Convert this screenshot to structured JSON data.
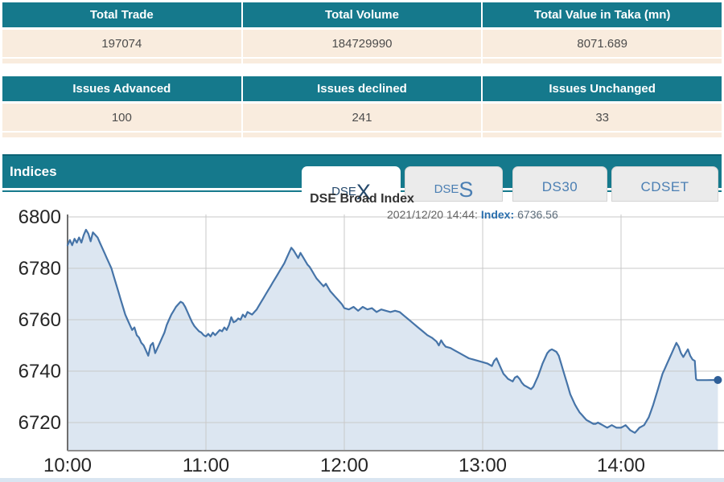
{
  "summary": {
    "trade": {
      "headers": [
        "Total Trade",
        "Total Volume",
        "Total Value in Taka (mn)"
      ],
      "values": [
        "197074",
        "184729990",
        "8071.689"
      ]
    },
    "issues": {
      "headers": [
        "Issues Advanced",
        "Issues declined",
        "Issues Unchanged"
      ],
      "values": [
        "100",
        "241",
        "33"
      ]
    }
  },
  "indices": {
    "title": "Indices",
    "tabs": [
      {
        "prefix": "DSE",
        "suffix": "X",
        "active": true
      },
      {
        "prefix": "DSE",
        "suffix": "S",
        "active": false
      },
      {
        "prefix": "DS30",
        "suffix": "",
        "active": false
      },
      {
        "prefix": "CDSET",
        "suffix": "",
        "active": false
      }
    ]
  },
  "colors": {
    "accent_teal": "#15798c",
    "row_beige": "#f9ecde",
    "tab_blue": "#4b7fb3",
    "line": "#4674a8",
    "fill": "#dce6f1",
    "grid": "#c9c9c9",
    "axis": "#6e6e6e",
    "marker": "#2f5f98"
  },
  "chart_data": {
    "type": "area",
    "title": "DSE Broad Index",
    "annotation": {
      "datetime": "2021/12/20 14:44:",
      "series_label": "Index:",
      "value": "6736.56"
    },
    "x_ticks": [
      "10:00",
      "11:00",
      "12:00",
      "13:00",
      "14:00"
    ],
    "y_ticks": [
      6800,
      6780,
      6760,
      6740,
      6720
    ],
    "ylim": [
      6710,
      6802
    ],
    "x_minutes_range": [
      0,
      284
    ],
    "grid": true,
    "legend": false,
    "series": [
      {
        "name": "Index",
        "last_value": 6736.56,
        "points": [
          [
            0,
            6789
          ],
          [
            1,
            6791
          ],
          [
            2,
            6789
          ],
          [
            3,
            6791.5
          ],
          [
            4,
            6790
          ],
          [
            5,
            6792
          ],
          [
            6,
            6790
          ],
          [
            7,
            6793
          ],
          [
            8,
            6795
          ],
          [
            9,
            6793.5
          ],
          [
            10,
            6790.5
          ],
          [
            11,
            6794
          ],
          [
            12,
            6793
          ],
          [
            13,
            6792
          ],
          [
            14,
            6790
          ],
          [
            15,
            6788
          ],
          [
            16,
            6786
          ],
          [
            17,
            6784
          ],
          [
            18,
            6782
          ],
          [
            19,
            6780
          ],
          [
            20,
            6777
          ],
          [
            21,
            6774
          ],
          [
            22,
            6771
          ],
          [
            23,
            6768
          ],
          [
            24,
            6765
          ],
          [
            25,
            6762
          ],
          [
            26,
            6760
          ],
          [
            27,
            6758
          ],
          [
            28,
            6756
          ],
          [
            29,
            6757
          ],
          [
            30,
            6754
          ],
          [
            31,
            6753
          ],
          [
            32,
            6751
          ],
          [
            33,
            6750
          ],
          [
            34,
            6748
          ],
          [
            35,
            6746
          ],
          [
            36,
            6750
          ],
          [
            37,
            6751
          ],
          [
            38,
            6747
          ],
          [
            39,
            6749
          ],
          [
            40,
            6751
          ],
          [
            41,
            6753
          ],
          [
            42,
            6755
          ],
          [
            43,
            6758
          ],
          [
            44,
            6760
          ],
          [
            45,
            6762
          ],
          [
            46,
            6763.5
          ],
          [
            47,
            6765
          ],
          [
            48,
            6766
          ],
          [
            49,
            6767
          ],
          [
            50,
            6766.5
          ],
          [
            51,
            6765
          ],
          [
            52,
            6763
          ],
          [
            53,
            6761
          ],
          [
            54,
            6759
          ],
          [
            55,
            6757.5
          ],
          [
            56,
            6756.5
          ],
          [
            57,
            6755.5
          ],
          [
            58,
            6755
          ],
          [
            59,
            6754
          ],
          [
            60,
            6753.5
          ],
          [
            61,
            6754.5
          ],
          [
            62,
            6753.5
          ],
          [
            63,
            6755
          ],
          [
            64,
            6754
          ],
          [
            65,
            6755
          ],
          [
            66,
            6756
          ],
          [
            67,
            6755.5
          ],
          [
            68,
            6757
          ],
          [
            69,
            6756
          ],
          [
            70,
            6758
          ],
          [
            71,
            6761
          ],
          [
            72,
            6759
          ],
          [
            73,
            6759.5
          ],
          [
            74,
            6760.5
          ],
          [
            75,
            6760
          ],
          [
            76,
            6762
          ],
          [
            77,
            6761
          ],
          [
            78,
            6763
          ],
          [
            79,
            6762.5
          ],
          [
            80,
            6762
          ],
          [
            81,
            6763
          ],
          [
            82,
            6764
          ],
          [
            83,
            6765.5
          ],
          [
            84,
            6767
          ],
          [
            85,
            6768.5
          ],
          [
            86,
            6770
          ],
          [
            87,
            6771.5
          ],
          [
            88,
            6773
          ],
          [
            89,
            6774.5
          ],
          [
            90,
            6776
          ],
          [
            91,
            6777.5
          ],
          [
            92,
            6779
          ],
          [
            93,
            6780.5
          ],
          [
            94,
            6782
          ],
          [
            95,
            6784
          ],
          [
            96,
            6786
          ],
          [
            97,
            6788
          ],
          [
            98,
            6787
          ],
          [
            99,
            6785.5
          ],
          [
            100,
            6784
          ],
          [
            101,
            6786
          ],
          [
            102,
            6784.5
          ],
          [
            103,
            6783
          ],
          [
            104,
            6781.5
          ],
          [
            105,
            6780.5
          ],
          [
            106,
            6779
          ],
          [
            107,
            6777.5
          ],
          [
            108,
            6776
          ],
          [
            109,
            6775
          ],
          [
            110,
            6774
          ],
          [
            111,
            6773
          ],
          [
            112,
            6774
          ],
          [
            113,
            6772.5
          ],
          [
            114,
            6771
          ],
          [
            115,
            6770
          ],
          [
            116,
            6769
          ],
          [
            117,
            6768
          ],
          [
            118,
            6767
          ],
          [
            119,
            6766
          ],
          [
            120,
            6764.5
          ],
          [
            122,
            6764
          ],
          [
            124,
            6765
          ],
          [
            126,
            6763.5
          ],
          [
            128,
            6765
          ],
          [
            130,
            6764
          ],
          [
            132,
            6764.5
          ],
          [
            134,
            6763
          ],
          [
            136,
            6764
          ],
          [
            138,
            6763.5
          ],
          [
            140,
            6763
          ],
          [
            142,
            6763.5
          ],
          [
            144,
            6763
          ],
          [
            146,
            6761.5
          ],
          [
            148,
            6760
          ],
          [
            150,
            6758.5
          ],
          [
            152,
            6757
          ],
          [
            154,
            6755.5
          ],
          [
            156,
            6754
          ],
          [
            158,
            6753
          ],
          [
            160,
            6751.5
          ],
          [
            161,
            6750
          ],
          [
            162,
            6752
          ],
          [
            163,
            6750.5
          ],
          [
            164,
            6749.5
          ],
          [
            166,
            6749
          ],
          [
            168,
            6748
          ],
          [
            170,
            6747
          ],
          [
            172,
            6746
          ],
          [
            174,
            6745
          ],
          [
            176,
            6744.5
          ],
          [
            178,
            6744
          ],
          [
            180,
            6743.5
          ],
          [
            182,
            6743
          ],
          [
            184,
            6742
          ],
          [
            185,
            6744
          ],
          [
            186,
            6745
          ],
          [
            187,
            6743
          ],
          [
            188,
            6741
          ],
          [
            189,
            6739
          ],
          [
            190,
            6738
          ],
          [
            191,
            6737
          ],
          [
            192,
            6736.5
          ],
          [
            193,
            6736
          ],
          [
            194,
            6737.5
          ],
          [
            195,
            6738
          ],
          [
            196,
            6737
          ],
          [
            197,
            6735.5
          ],
          [
            198,
            6734.5
          ],
          [
            199,
            6734
          ],
          [
            200,
            6733.5
          ],
          [
            201,
            6733
          ],
          [
            202,
            6734
          ],
          [
            203,
            6736
          ],
          [
            204,
            6738
          ],
          [
            205,
            6740.5
          ],
          [
            206,
            6743
          ],
          [
            207,
            6745
          ],
          [
            208,
            6747
          ],
          [
            209,
            6748
          ],
          [
            210,
            6748.5
          ],
          [
            211,
            6748
          ],
          [
            212,
            6747.5
          ],
          [
            213,
            6746
          ],
          [
            214,
            6743
          ],
          [
            215,
            6740
          ],
          [
            216,
            6737
          ],
          [
            217,
            6734
          ],
          [
            218,
            6731
          ],
          [
            219,
            6729
          ],
          [
            220,
            6727
          ],
          [
            221,
            6725.5
          ],
          [
            222,
            6724
          ],
          [
            223,
            6723
          ],
          [
            224,
            6722
          ],
          [
            225,
            6721
          ],
          [
            226,
            6720.5
          ],
          [
            227,
            6720
          ],
          [
            228,
            6719.5
          ],
          [
            229,
            6719.5
          ],
          [
            230,
            6720
          ],
          [
            231,
            6719.5
          ],
          [
            232,
            6719
          ],
          [
            233,
            6718.5
          ],
          [
            234,
            6718
          ],
          [
            235,
            6718.5
          ],
          [
            236,
            6719
          ],
          [
            237,
            6718.5
          ],
          [
            238,
            6718
          ],
          [
            240,
            6718
          ],
          [
            241,
            6718.5
          ],
          [
            242,
            6719
          ],
          [
            243,
            6718
          ],
          [
            244,
            6717
          ],
          [
            245,
            6716.5
          ],
          [
            246,
            6716
          ],
          [
            247,
            6717
          ],
          [
            248,
            6718
          ],
          [
            249,
            6718.5
          ],
          [
            250,
            6719
          ],
          [
            251,
            6720.5
          ],
          [
            252,
            6722
          ],
          [
            253,
            6724.5
          ],
          [
            254,
            6727
          ],
          [
            255,
            6730
          ],
          [
            256,
            6733
          ],
          [
            257,
            6736
          ],
          [
            258,
            6739
          ],
          [
            259,
            6741
          ],
          [
            260,
            6743
          ],
          [
            261,
            6745
          ],
          [
            262,
            6747
          ],
          [
            263,
            6749
          ],
          [
            264,
            6751
          ],
          [
            265,
            6749.5
          ],
          [
            266,
            6747
          ],
          [
            267,
            6745.5
          ],
          [
            268,
            6747
          ],
          [
            269,
            6748.5
          ],
          [
            270,
            6746
          ],
          [
            271,
            6744.5
          ],
          [
            272,
            6744
          ],
          [
            272.5,
            6737
          ],
          [
            273,
            6736.5
          ],
          [
            277,
            6736.5
          ],
          [
            282,
            6736.56
          ]
        ]
      }
    ]
  }
}
